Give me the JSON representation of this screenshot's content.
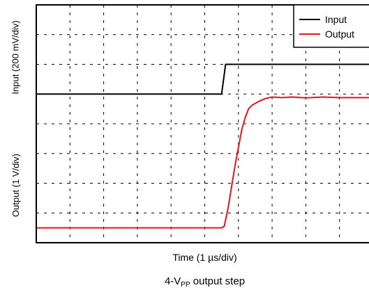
{
  "chart_data": {
    "type": "line",
    "title": "",
    "xlabel": "Time (1 µs/div)",
    "ylabel_top": "Input (200 mV/div)",
    "ylabel_bottom": "Output (1 V/div)",
    "grid": true,
    "legend_position": "top-right",
    "x_divisions": 10,
    "y_divisions": 8,
    "series": [
      {
        "name": "Input",
        "color": "#000000",
        "x": [
          0,
          5.5,
          5.62,
          10
        ],
        "y": [
          5.0,
          5.0,
          6.0,
          6.0
        ]
      },
      {
        "name": "Output",
        "color": "#e8131b",
        "x": [
          0,
          5.5,
          5.58,
          5.7,
          5.8,
          5.9,
          6.0,
          6.1,
          6.2,
          6.3,
          6.4,
          6.6,
          6.8,
          7.0,
          7.3,
          7.6,
          8.0,
          8.5,
          9.0,
          10
        ],
        "y": [
          0.5,
          0.5,
          0.55,
          1.2,
          1.9,
          2.6,
          3.2,
          3.8,
          4.2,
          4.5,
          4.62,
          4.75,
          4.85,
          4.9,
          4.88,
          4.9,
          4.87,
          4.9,
          4.88,
          4.88
        ]
      }
    ]
  },
  "caption": {
    "prefix": "4-V",
    "subscript": "PP",
    "suffix": " output step"
  }
}
